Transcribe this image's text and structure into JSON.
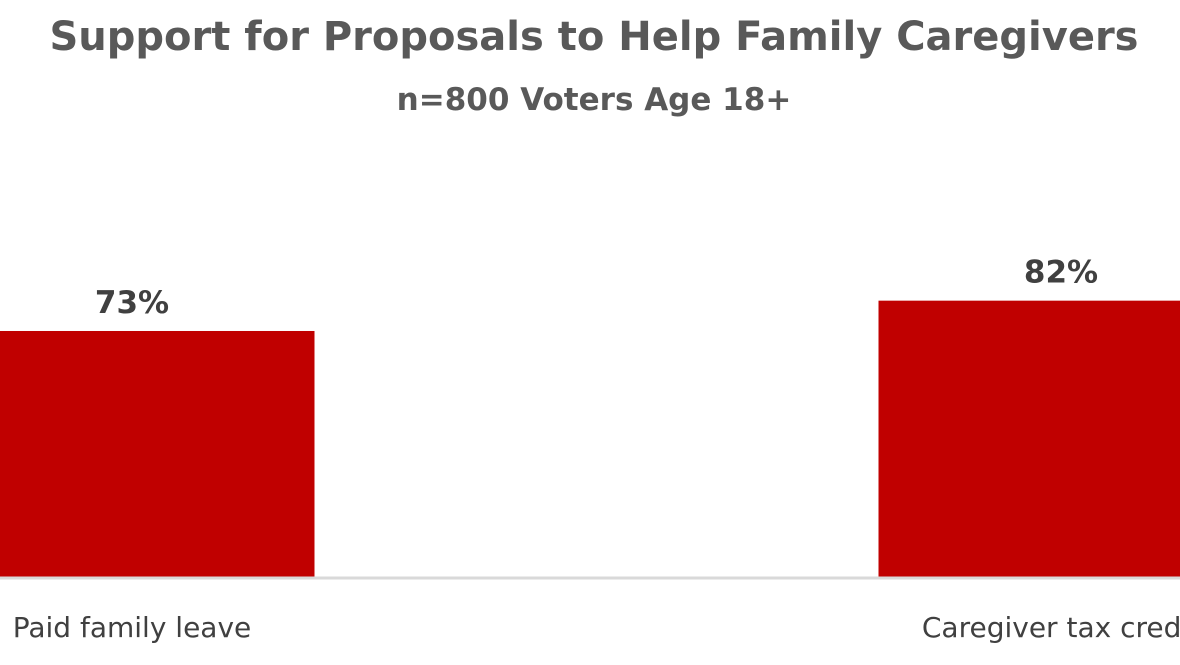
{
  "chart_data": {
    "type": "bar",
    "title": "Support for Proposals to Help Family Caregivers",
    "subtitle": "n=800 Voters Age 18+",
    "categories": [
      "Paid family leave",
      "Caregiver tax credit"
    ],
    "values": [
      73,
      82
    ],
    "value_labels": [
      "73%",
      "82%"
    ],
    "xlabel": "",
    "ylabel": "",
    "ylim": [
      0,
      100
    ],
    "grid": false,
    "legend": "none"
  },
  "colors": {
    "bar": "#C00000",
    "title_text": "#595959",
    "label_text": "#404040",
    "axis_line": "#D9D9D9"
  }
}
